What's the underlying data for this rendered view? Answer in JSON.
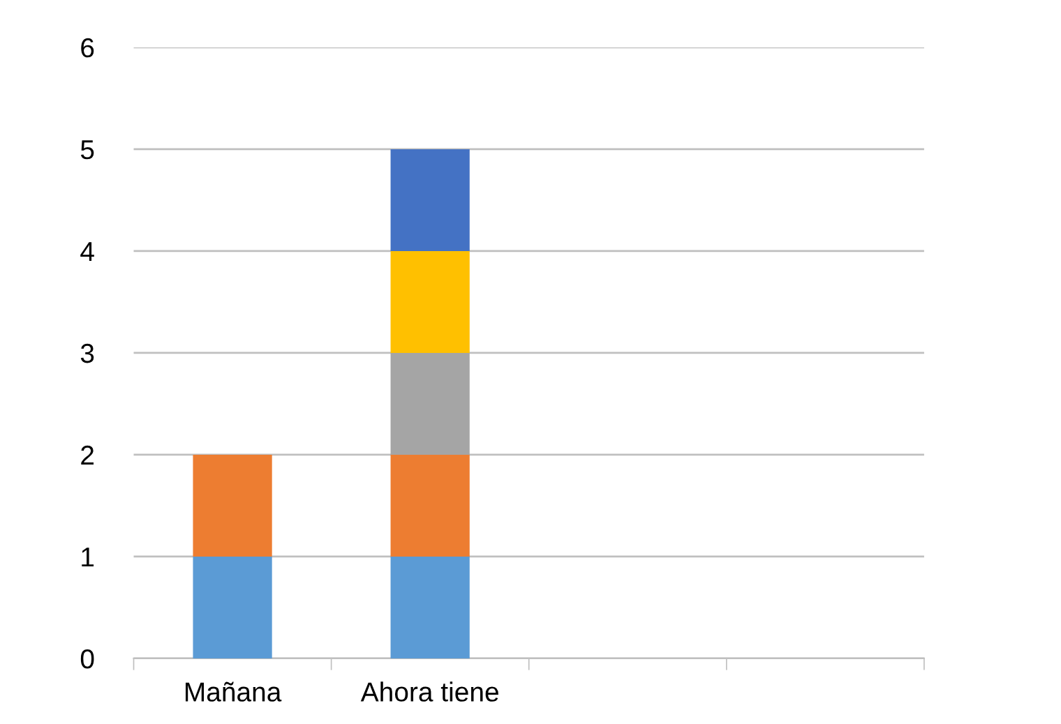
{
  "chart_data": {
    "type": "bar",
    "stacked": true,
    "categories": [
      "Mañana",
      "Ahora tiene",
      null,
      null
    ],
    "series": [
      {
        "color": "#5b9bd5",
        "values": [
          1,
          1,
          null,
          null
        ]
      },
      {
        "color": "#ed7d31",
        "values": [
          1,
          1,
          null,
          null
        ]
      },
      {
        "color": "#a5a5a5",
        "values": [
          null,
          1,
          null,
          null
        ]
      },
      {
        "color": "#ffc000",
        "values": [
          null,
          1,
          null,
          null
        ]
      },
      {
        "color": "#4472c4",
        "values": [
          null,
          1,
          null,
          null
        ]
      }
    ],
    "ylim": [
      0,
      6
    ],
    "yticks": [
      0,
      1,
      2,
      3,
      4,
      5,
      6
    ],
    "grid": "y",
    "legend": false
  }
}
